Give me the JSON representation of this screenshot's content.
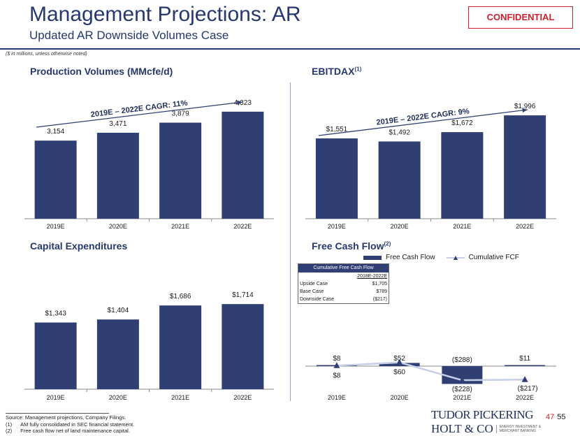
{
  "header": {
    "title": "Management Projections: AR",
    "subtitle": "Updated AR Downside Volumes Case",
    "confidential": "CONFIDENTIAL",
    "units_note": "($ in millions, unless otherwise noted)"
  },
  "sections": {
    "production_title": "Production Volumes (MMcfe/d)",
    "ebitdax_title": "EBITDAX",
    "ebitdax_sup": "(1)",
    "capex_title": "Capital Expenditures",
    "fcf_title": "Free Cash Flow",
    "fcf_sup": "(2)"
  },
  "chart_data": [
    {
      "id": "production",
      "type": "bar",
      "title": "Production Volumes (MMcfe/d)",
      "categories": [
        "2019E",
        "2020E",
        "2021E",
        "2022E"
      ],
      "values": [
        3154,
        3471,
        3879,
        4323
      ],
      "labels": [
        "3,154",
        "3,471",
        "3,879",
        "4,323"
      ],
      "ylim": [
        0,
        4600
      ],
      "annotation": "2019E – 2022E CAGR: 11%",
      "color": "#2f3f73"
    },
    {
      "id": "ebitdax",
      "type": "bar",
      "title": "EBITDAX",
      "categories": [
        "2019E",
        "2020E",
        "2021E",
        "2022E"
      ],
      "values": [
        1551,
        1492,
        1672,
        1996
      ],
      "labels": [
        "$1,551",
        "$1,492",
        "$1,672",
        "$1,996"
      ],
      "ylim": [
        0,
        2200
      ],
      "annotation": "2019E – 2022E CAGR: 9%",
      "color": "#2f3f73"
    },
    {
      "id": "capex",
      "type": "bar",
      "title": "Capital Expenditures",
      "categories": [
        "2019E",
        "2020E",
        "2021E",
        "2022E"
      ],
      "values": [
        1343,
        1404,
        1686,
        1714
      ],
      "labels": [
        "$1,343",
        "$1,404",
        "$1,686",
        "$1,714"
      ],
      "ylim": [
        0,
        2350
      ],
      "color": "#2f3f73"
    },
    {
      "id": "fcf",
      "type": "bar",
      "title": "Free Cash Flow",
      "categories": [
        "2019E",
        "2020E",
        "2021E",
        "2022E"
      ],
      "series": [
        {
          "name": "Free Cash Flow",
          "values": [
            8,
            52,
            -288,
            11
          ],
          "labels": [
            "$8",
            "$52",
            "($288)",
            "$11"
          ]
        },
        {
          "name": "Cumulative FCF",
          "values": [
            8,
            60,
            -228,
            -217
          ],
          "labels": [
            "$8",
            "$60",
            "($228)",
            "($217)"
          ]
        }
      ],
      "ylim": [
        -400,
        400
      ],
      "legend": [
        "Free Cash Flow",
        "Cumulative FCF"
      ]
    }
  ],
  "cumulative_table": {
    "title": "Cumulative Free Cash Flow",
    "column": "2018E-2022E",
    "rows": [
      {
        "label": "Upside Case",
        "value": "$1,705"
      },
      {
        "label": "Base Case",
        "value": "$789"
      },
      {
        "label": "Downside Case",
        "value": "($217)"
      }
    ]
  },
  "footnotes": {
    "source": "Source: Management projections, Company Filings.",
    "items": [
      {
        "num": "(1)",
        "text": "AM fully consolidated in SEC financial statement."
      },
      {
        "num": "(2)",
        "text": "Free cash flow net of land maintenance capital."
      }
    ]
  },
  "logo": {
    "line1": "TUDOR PICKERING",
    "line2": "HOLT & CO",
    "tag1": "ENERGY INVESTMENT &",
    "tag2": "MERCHANT BANKING"
  },
  "page": {
    "red": "47",
    "black": "55"
  },
  "colors": {
    "bar": "#2f3f73",
    "line": "#c6cfe6",
    "accent": "#d0202e",
    "brand": "#26386e"
  }
}
